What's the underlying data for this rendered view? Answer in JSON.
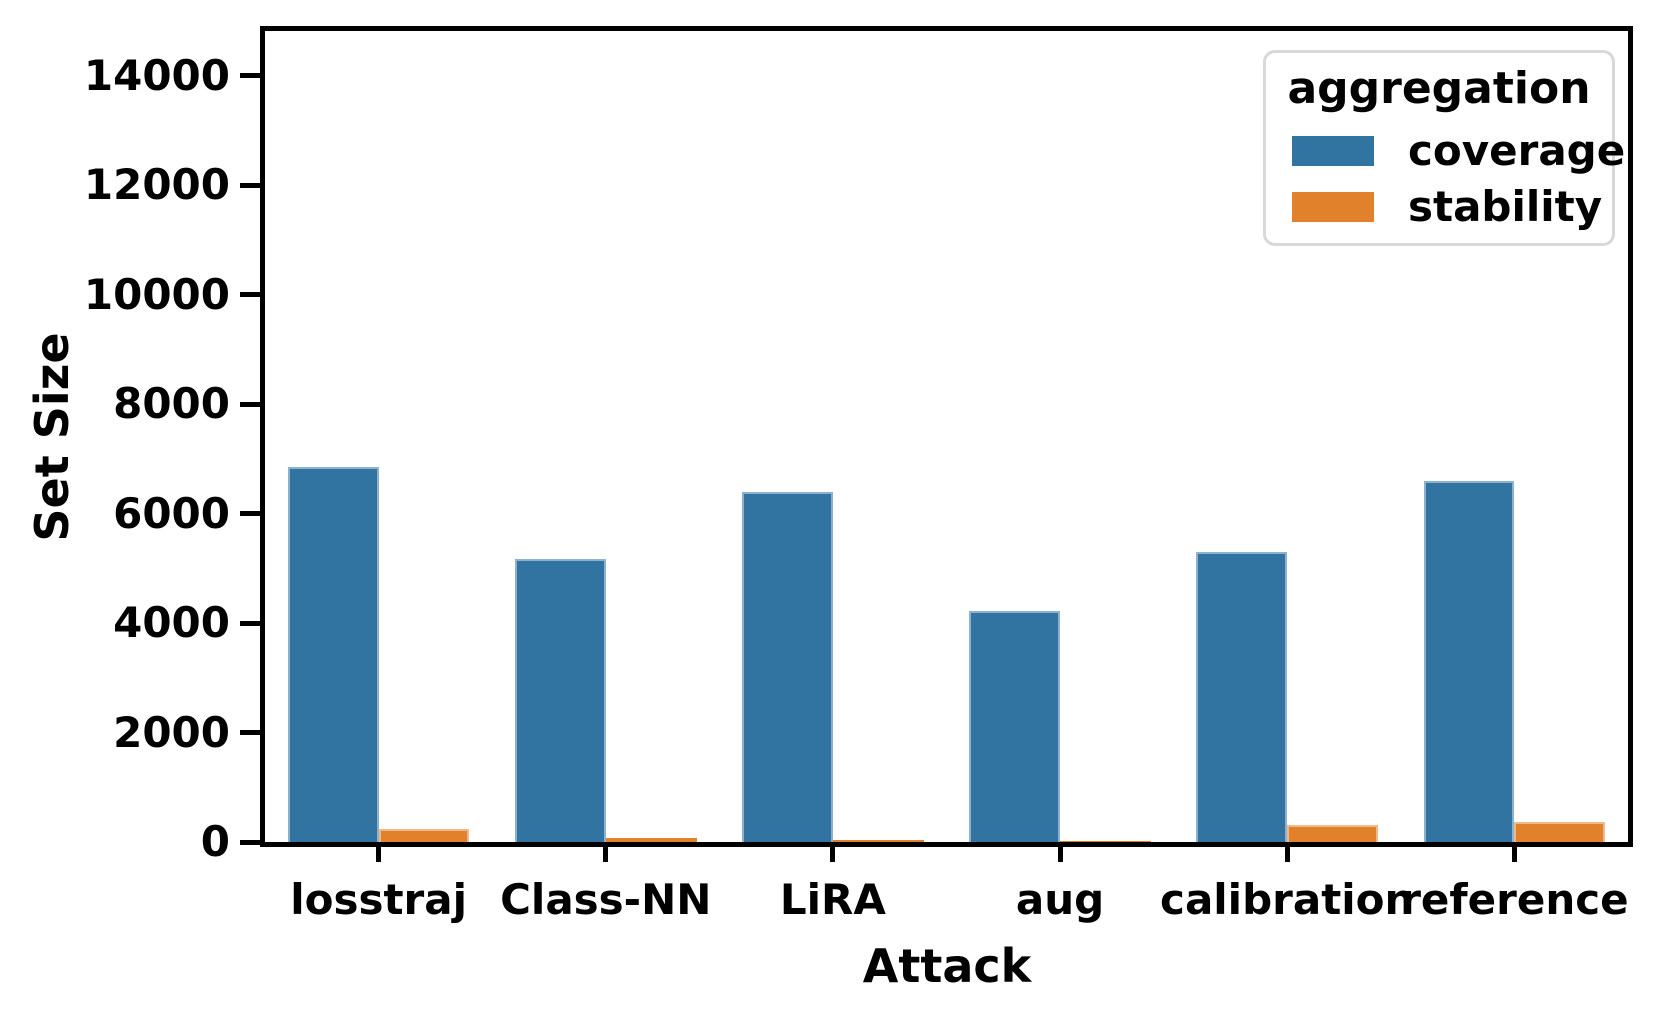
{
  "chart_data": {
    "type": "bar",
    "categories": [
      "losstraj",
      "Class-NN",
      "LiRA",
      "aug",
      "calibration",
      "reference"
    ],
    "series": [
      {
        "name": "coverage",
        "color": "#3274a1",
        "edge_color": "rgba(255,255,255,0.45)",
        "values": [
          6850,
          5180,
          6400,
          4230,
          5300,
          6600
        ]
      },
      {
        "name": "stability",
        "color": "#e1812c",
        "edge_color": "rgba(255,255,255,0.45)",
        "values": [
          240,
          70,
          40,
          10,
          320,
          370
        ]
      }
    ],
    "title": "",
    "xlabel": "Attack",
    "ylabel": "Set Size",
    "ylim": [
      0,
      14820
    ],
    "yticks": [
      0,
      2000,
      4000,
      6000,
      8000,
      10000,
      12000,
      14000
    ],
    "grid": false,
    "legend": {
      "title": "aggregation",
      "position": "upper right"
    },
    "colors": {
      "spine": "#000000",
      "legend_border": "#d8d8d8",
      "text": "#000000"
    }
  }
}
